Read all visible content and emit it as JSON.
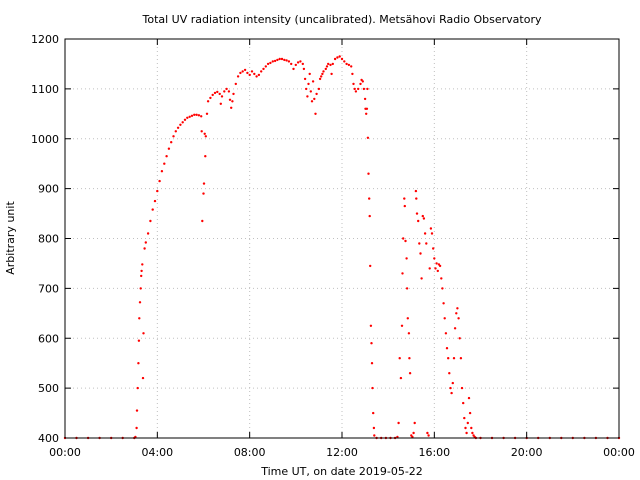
{
  "chart_data": {
    "type": "scatter",
    "title": "Total UV radiation intensity (uncalibrated). Metsähovi Radio Observatory",
    "xlabel": "Time UT, on date 2019-05-22",
    "ylabel": "Arbitrary unit",
    "xlim": [
      0,
      24
    ],
    "ylim": [
      400,
      1200
    ],
    "x_ticks": [
      "00:00",
      "04:00",
      "08:00",
      "12:00",
      "16:00",
      "20:00",
      "00:00"
    ],
    "y_ticks": [
      "400",
      "500",
      "600",
      "700",
      "800",
      "900",
      "1000",
      "1100",
      "1200"
    ],
    "grid": true,
    "series": [
      {
        "color": "#ff0000",
        "points": [
          [
            0.0,
            400
          ],
          [
            0.5,
            400
          ],
          [
            1.0,
            400
          ],
          [
            1.5,
            400
          ],
          [
            2.0,
            400
          ],
          [
            2.5,
            400
          ],
          [
            3.0,
            400
          ],
          [
            3.05,
            402
          ],
          [
            3.1,
            420
          ],
          [
            3.12,
            455
          ],
          [
            3.15,
            500
          ],
          [
            3.18,
            550
          ],
          [
            3.2,
            595
          ],
          [
            3.22,
            640
          ],
          [
            3.25,
            672
          ],
          [
            3.28,
            700
          ],
          [
            3.3,
            725
          ],
          [
            3.32,
            735
          ],
          [
            3.35,
            748
          ],
          [
            3.38,
            520
          ],
          [
            3.4,
            610
          ],
          [
            3.45,
            780
          ],
          [
            3.5,
            792
          ],
          [
            3.6,
            810
          ],
          [
            3.7,
            835
          ],
          [
            3.8,
            858
          ],
          [
            3.9,
            875
          ],
          [
            4.0,
            895
          ],
          [
            4.1,
            915
          ],
          [
            4.2,
            935
          ],
          [
            4.3,
            950
          ],
          [
            4.4,
            965
          ],
          [
            4.5,
            980
          ],
          [
            4.6,
            993
          ],
          [
            4.7,
            1005
          ],
          [
            4.8,
            1015
          ],
          [
            4.9,
            1022
          ],
          [
            5.0,
            1028
          ],
          [
            5.1,
            1033
          ],
          [
            5.2,
            1038
          ],
          [
            5.3,
            1042
          ],
          [
            5.4,
            1044
          ],
          [
            5.5,
            1046
          ],
          [
            5.6,
            1048
          ],
          [
            5.7,
            1048
          ],
          [
            5.8,
            1047
          ],
          [
            5.9,
            1045
          ],
          [
            5.92,
            1015
          ],
          [
            5.95,
            835
          ],
          [
            6.0,
            890
          ],
          [
            6.02,
            910
          ],
          [
            6.05,
            1010
          ],
          [
            6.08,
            965
          ],
          [
            6.1,
            1005
          ],
          [
            6.15,
            1050
          ],
          [
            6.2,
            1075
          ],
          [
            6.3,
            1082
          ],
          [
            6.4,
            1088
          ],
          [
            6.5,
            1092
          ],
          [
            6.6,
            1094
          ],
          [
            6.7,
            1090
          ],
          [
            6.75,
            1070
          ],
          [
            6.8,
            1085
          ],
          [
            6.9,
            1095
          ],
          [
            7.0,
            1100
          ],
          [
            7.1,
            1095
          ],
          [
            7.15,
            1078
          ],
          [
            7.2,
            1062
          ],
          [
            7.25,
            1075
          ],
          [
            7.3,
            1090
          ],
          [
            7.4,
            1110
          ],
          [
            7.5,
            1125
          ],
          [
            7.6,
            1132
          ],
          [
            7.7,
            1135
          ],
          [
            7.8,
            1138
          ],
          [
            7.9,
            1132
          ],
          [
            8.0,
            1128
          ],
          [
            8.1,
            1135
          ],
          [
            8.2,
            1130
          ],
          [
            8.3,
            1125
          ],
          [
            8.4,
            1128
          ],
          [
            8.5,
            1135
          ],
          [
            8.6,
            1140
          ],
          [
            8.7,
            1145
          ],
          [
            8.8,
            1150
          ],
          [
            8.9,
            1152
          ],
          [
            9.0,
            1155
          ],
          [
            9.1,
            1156
          ],
          [
            9.2,
            1158
          ],
          [
            9.3,
            1160
          ],
          [
            9.4,
            1160
          ],
          [
            9.5,
            1158
          ],
          [
            9.6,
            1157
          ],
          [
            9.7,
            1155
          ],
          [
            9.8,
            1150
          ],
          [
            9.9,
            1140
          ],
          [
            10.0,
            1148
          ],
          [
            10.1,
            1153
          ],
          [
            10.2,
            1155
          ],
          [
            10.3,
            1150
          ],
          [
            10.35,
            1140
          ],
          [
            10.4,
            1120
          ],
          [
            10.45,
            1100
          ],
          [
            10.5,
            1085
          ],
          [
            10.55,
            1110
          ],
          [
            10.6,
            1130
          ],
          [
            10.65,
            1095
          ],
          [
            10.7,
            1075
          ],
          [
            10.75,
            1115
          ],
          [
            10.8,
            1080
          ],
          [
            10.85,
            1050
          ],
          [
            10.9,
            1090
          ],
          [
            11.0,
            1100
          ],
          [
            11.05,
            1120
          ],
          [
            11.1,
            1125
          ],
          [
            11.15,
            1130
          ],
          [
            11.2,
            1135
          ],
          [
            11.3,
            1140
          ],
          [
            11.35,
            1145
          ],
          [
            11.4,
            1150
          ],
          [
            11.5,
            1148
          ],
          [
            11.55,
            1130
          ],
          [
            11.6,
            1150
          ],
          [
            11.7,
            1160
          ],
          [
            11.8,
            1163
          ],
          [
            11.9,
            1165
          ],
          [
            12.0,
            1160
          ],
          [
            12.1,
            1155
          ],
          [
            12.2,
            1150
          ],
          [
            12.3,
            1148
          ],
          [
            12.4,
            1145
          ],
          [
            12.45,
            1130
          ],
          [
            12.5,
            1110
          ],
          [
            12.55,
            1100
          ],
          [
            12.6,
            1095
          ],
          [
            12.7,
            1100
          ],
          [
            12.8,
            1110
          ],
          [
            12.85,
            1118
          ],
          [
            12.9,
            1115
          ],
          [
            12.95,
            1100
          ],
          [
            13.0,
            1080
          ],
          [
            13.02,
            1060
          ],
          [
            13.05,
            1050
          ],
          [
            13.08,
            1060
          ],
          [
            13.1,
            1100
          ],
          [
            13.12,
            1002
          ],
          [
            13.15,
            930
          ],
          [
            13.18,
            880
          ],
          [
            13.2,
            845
          ],
          [
            13.22,
            745
          ],
          [
            13.25,
            625
          ],
          [
            13.28,
            590
          ],
          [
            13.3,
            550
          ],
          [
            13.32,
            500
          ],
          [
            13.35,
            450
          ],
          [
            13.38,
            420
          ],
          [
            13.4,
            405
          ],
          [
            13.5,
            400
          ],
          [
            13.7,
            400
          ],
          [
            13.9,
            400
          ],
          [
            14.1,
            400
          ],
          [
            14.3,
            400
          ],
          [
            14.4,
            402
          ],
          [
            14.45,
            430
          ],
          [
            14.5,
            560
          ],
          [
            14.55,
            520
          ],
          [
            14.6,
            625
          ],
          [
            14.62,
            730
          ],
          [
            14.65,
            800
          ],
          [
            14.7,
            880
          ],
          [
            14.72,
            865
          ],
          [
            14.75,
            795
          ],
          [
            14.8,
            760
          ],
          [
            14.82,
            700
          ],
          [
            14.85,
            640
          ],
          [
            14.9,
            610
          ],
          [
            14.92,
            560
          ],
          [
            14.95,
            530
          ],
          [
            15.0,
            405
          ],
          [
            15.05,
            402
          ],
          [
            15.1,
            410
          ],
          [
            15.15,
            430
          ],
          [
            15.2,
            895
          ],
          [
            15.22,
            880
          ],
          [
            15.25,
            850
          ],
          [
            15.3,
            835
          ],
          [
            15.35,
            790
          ],
          [
            15.4,
            770
          ],
          [
            15.45,
            720
          ],
          [
            15.5,
            845
          ],
          [
            15.55,
            840
          ],
          [
            15.6,
            810
          ],
          [
            15.65,
            790
          ],
          [
            15.7,
            410
          ],
          [
            15.75,
            405
          ],
          [
            15.8,
            740
          ],
          [
            15.85,
            820
          ],
          [
            15.9,
            810
          ],
          [
            15.95,
            780
          ],
          [
            16.0,
            760
          ],
          [
            16.05,
            740
          ],
          [
            16.1,
            750
          ],
          [
            16.15,
            735
          ],
          [
            16.2,
            748
          ],
          [
            16.25,
            745
          ],
          [
            16.3,
            720
          ],
          [
            16.35,
            700
          ],
          [
            16.4,
            670
          ],
          [
            16.45,
            640
          ],
          [
            16.5,
            610
          ],
          [
            16.55,
            580
          ],
          [
            16.6,
            560
          ],
          [
            16.65,
            530
          ],
          [
            16.7,
            500
          ],
          [
            16.75,
            490
          ],
          [
            16.8,
            510
          ],
          [
            16.85,
            560
          ],
          [
            16.9,
            620
          ],
          [
            16.95,
            650
          ],
          [
            17.0,
            660
          ],
          [
            17.05,
            640
          ],
          [
            17.1,
            600
          ],
          [
            17.15,
            560
          ],
          [
            17.2,
            500
          ],
          [
            17.25,
            470
          ],
          [
            17.3,
            440
          ],
          [
            17.35,
            420
          ],
          [
            17.4,
            410
          ],
          [
            17.45,
            430
          ],
          [
            17.5,
            480
          ],
          [
            17.55,
            450
          ],
          [
            17.6,
            420
          ],
          [
            17.65,
            410
          ],
          [
            17.7,
            405
          ],
          [
            17.75,
            402
          ],
          [
            17.8,
            400
          ],
          [
            18.0,
            400
          ],
          [
            18.5,
            400
          ],
          [
            19.0,
            400
          ],
          [
            19.5,
            400
          ],
          [
            20.0,
            400
          ],
          [
            20.5,
            400
          ],
          [
            21.0,
            400
          ],
          [
            21.5,
            400
          ],
          [
            22.0,
            400
          ],
          [
            22.5,
            400
          ],
          [
            23.0,
            400
          ],
          [
            23.5,
            400
          ],
          [
            24.0,
            400
          ]
        ]
      }
    ]
  }
}
